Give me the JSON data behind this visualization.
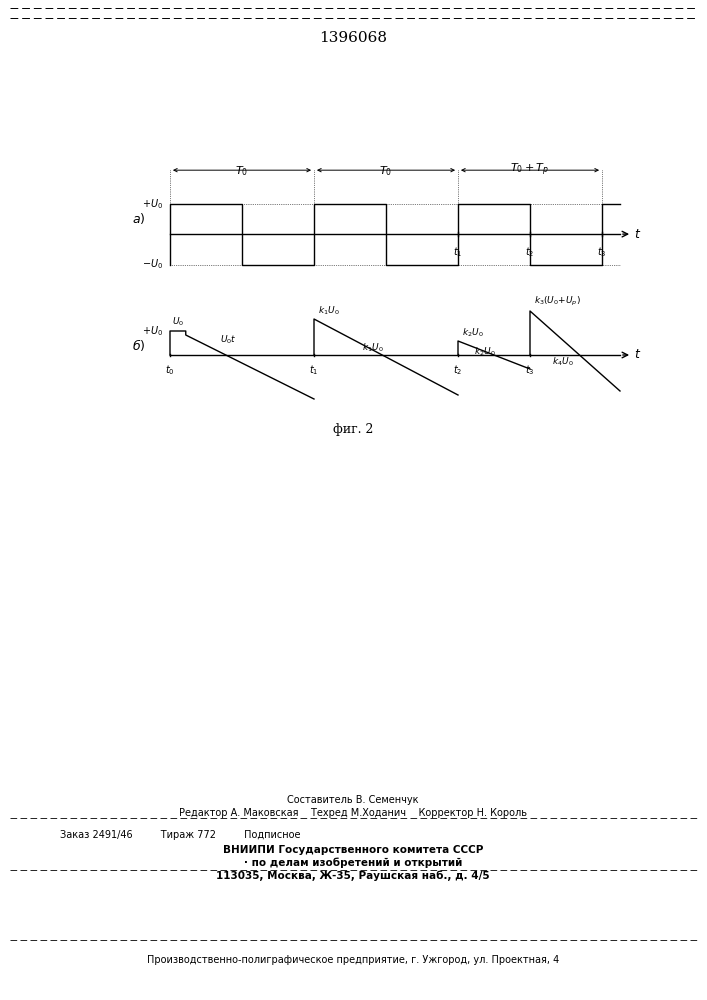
{
  "title": "1396068",
  "fig_caption": "фиг. 2",
  "label_a": "а)",
  "label_b": "б)",
  "bg_color": "#ffffff",
  "line_color": "#000000",
  "footer_line1": "Составитель В. Семенчук",
  "footer_line2": "Редактор А. Маковская    Техред М.Ходанич    Корректор Н. Король",
  "footer_line3": "Заказ 2491/46         Тираж 772         Подписное",
  "footer_line4": "ВНИИПИ Государственного комитета СССР",
  "footer_line5": "· по делам изобретений и открытий",
  "footer_line6": "113035, Москва, Ж-35, Раушская наб., д. 4/5",
  "footer_line7": "Производственно-полиграфическое предприятие, г. Ужгород, ул. Проектная, 4"
}
